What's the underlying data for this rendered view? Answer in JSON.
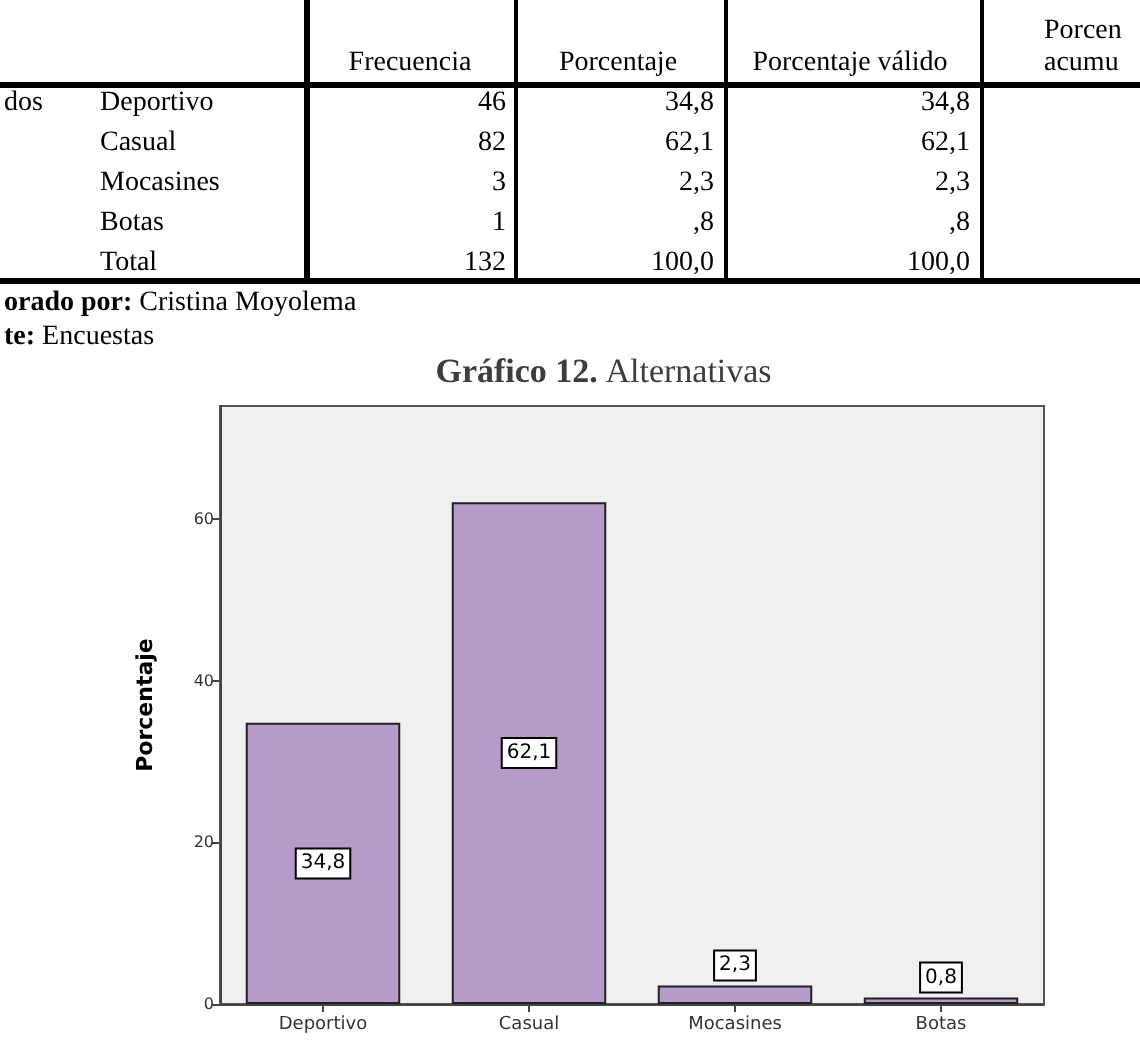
{
  "chart_data": [
    {
      "type": "other",
      "annotations": [
        "Frecuencia",
        "Porcentaje",
        "Porcentaje válido",
        "Porcen",
        "acumu",
        "dos",
        "Deportivo",
        "46",
        "34,8",
        "34,8",
        "Casual",
        "82",
        "62,1",
        "62,1",
        "Mocasines",
        "3",
        "2,3",
        "2,3",
        "Botas",
        "1",
        ",8",
        ",8",
        "Total",
        "132",
        "100,0",
        "100,0",
        "orado por: Cristina Moyolema",
        "te: Encuestas"
      ]
    },
    {
      "type": "bar",
      "title": "Gráfico 12. Alternativas",
      "ylabel": "Porcentaje",
      "categories": [
        "Deportivo",
        "Casual",
        "Mocasines",
        "Botas"
      ],
      "values": [
        34.8,
        62.1,
        2.3,
        0.8
      ],
      "value_labels": [
        "34,8",
        "62,1",
        "2,3",
        "0,8"
      ],
      "color": "#b59bc9",
      "ylim": [
        0,
        74
      ],
      "yticks": [
        0,
        20,
        40,
        60
      ],
      "grid": false
    }
  ]
}
